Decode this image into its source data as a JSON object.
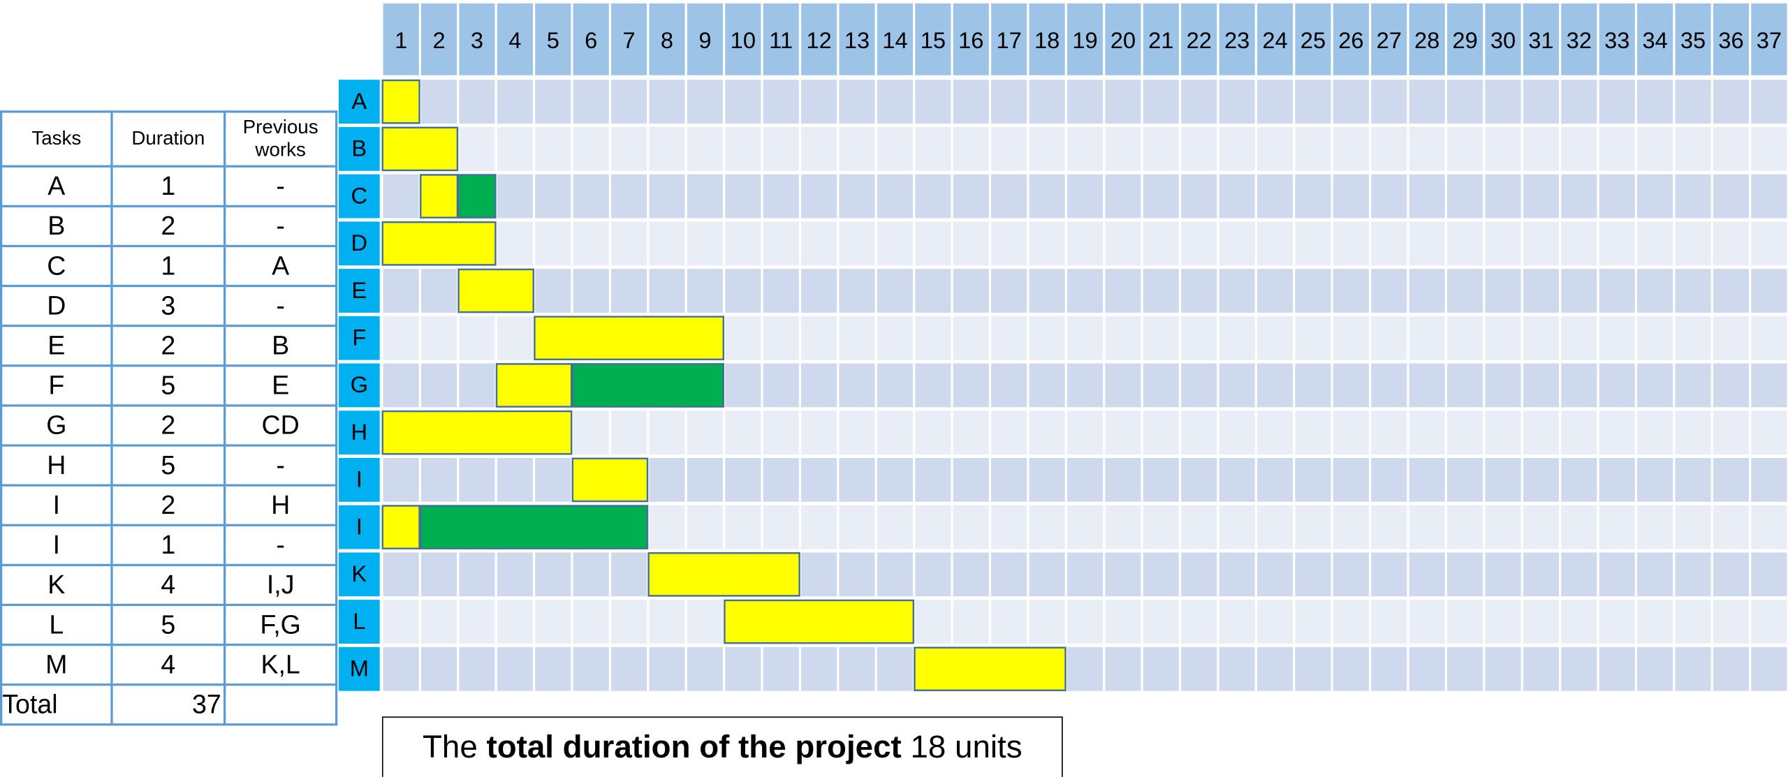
{
  "table": {
    "header": [
      "Tasks",
      "Duration",
      "Previous works"
    ],
    "rows": [
      [
        "A",
        1,
        "-"
      ],
      [
        "B",
        2,
        "-"
      ],
      [
        "C",
        1,
        "A"
      ],
      [
        "D",
        3,
        "-"
      ],
      [
        "E",
        2,
        "B"
      ],
      [
        "F",
        5,
        "E"
      ],
      [
        "G",
        2,
        "CD"
      ],
      [
        "H",
        5,
        "-"
      ],
      [
        "I",
        2,
        "H"
      ],
      [
        "I",
        1,
        "-"
      ],
      [
        "K",
        4,
        "I,J"
      ],
      [
        "L",
        5,
        "F,G"
      ],
      [
        "M",
        4,
        "K,L"
      ]
    ],
    "total": {
      "label": "Total",
      "value": 37
    }
  },
  "caption": [
    "The",
    "total duration of the project",
    "18 units"
  ],
  "chart_data": {
    "type": "gantt",
    "xlim": [
      0,
      37
    ],
    "xticks": [
      1,
      2,
      3,
      4,
      5,
      6,
      7,
      8,
      9,
      10,
      11,
      12,
      13,
      14,
      15,
      16,
      17,
      18,
      19,
      20,
      21,
      22,
      23,
      24,
      25,
      26,
      27,
      28,
      29,
      30,
      31,
      32,
      33,
      34,
      35,
      36,
      37
    ],
    "tasks": [
      {
        "label": "A",
        "bars": [
          {
            "start": 0,
            "end": 1,
            "color": "#ffff00"
          }
        ]
      },
      {
        "label": "B",
        "bars": [
          {
            "start": 0,
            "end": 2,
            "color": "#ffff00"
          }
        ]
      },
      {
        "label": "C",
        "bars": [
          {
            "start": 1,
            "end": 2,
            "color": "#ffff00"
          },
          {
            "start": 2,
            "end": 3,
            "color": "#00b050"
          }
        ]
      },
      {
        "label": "D",
        "bars": [
          {
            "start": 0,
            "end": 3,
            "color": "#ffff00"
          }
        ]
      },
      {
        "label": "E",
        "bars": [
          {
            "start": 2,
            "end": 4,
            "color": "#ffff00"
          }
        ]
      },
      {
        "label": "F",
        "bars": [
          {
            "start": 4,
            "end": 9,
            "color": "#ffff00"
          }
        ]
      },
      {
        "label": "G",
        "bars": [
          {
            "start": 3,
            "end": 5,
            "color": "#ffff00"
          },
          {
            "start": 5,
            "end": 9,
            "color": "#00b050"
          }
        ]
      },
      {
        "label": "H",
        "bars": [
          {
            "start": 0,
            "end": 5,
            "color": "#ffff00"
          }
        ]
      },
      {
        "label": "I",
        "bars": [
          {
            "start": 5,
            "end": 7,
            "color": "#ffff00"
          }
        ]
      },
      {
        "label": "I",
        "bars": [
          {
            "start": 0,
            "end": 1,
            "color": "#ffff00"
          },
          {
            "start": 1,
            "end": 7,
            "color": "#00b050"
          }
        ]
      },
      {
        "label": "K",
        "bars": [
          {
            "start": 7,
            "end": 11,
            "color": "#ffff00"
          }
        ]
      },
      {
        "label": "L",
        "bars": [
          {
            "start": 9,
            "end": 14,
            "color": "#ffff00"
          }
        ]
      },
      {
        "label": "M",
        "bars": [
          {
            "start": 14,
            "end": 18,
            "color": "#ffff00"
          }
        ]
      }
    ]
  }
}
